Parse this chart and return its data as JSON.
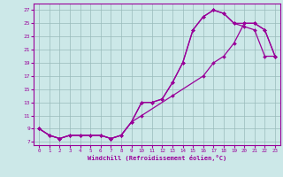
{
  "xlabel": "Windchill (Refroidissement éolien,°C)",
  "bg_color": "#cce8e8",
  "line_color": "#990099",
  "grid_color": "#99bbbb",
  "xlim": [
    -0.5,
    23.5
  ],
  "ylim": [
    6.5,
    28
  ],
  "xticks": [
    0,
    1,
    2,
    3,
    4,
    5,
    6,
    7,
    8,
    9,
    10,
    11,
    12,
    13,
    14,
    15,
    16,
    17,
    18,
    19,
    20,
    21,
    22,
    23
  ],
  "yticks": [
    7,
    9,
    11,
    13,
    15,
    17,
    19,
    21,
    23,
    25,
    27
  ],
  "curve1_x": [
    0,
    1,
    2,
    3,
    4,
    5,
    6,
    7,
    8,
    9,
    10,
    11,
    12,
    13,
    14,
    15,
    16,
    17,
    18,
    19,
    20,
    21,
    22,
    23
  ],
  "curve1_y": [
    9,
    8,
    7.5,
    8,
    8,
    8,
    8,
    7.5,
    8,
    10,
    13,
    13,
    13.5,
    16,
    19,
    24,
    26,
    27,
    26.5,
    25,
    24.5,
    24,
    20,
    20
  ],
  "curve2_x": [
    0,
    1,
    2,
    3,
    4,
    5,
    6,
    7,
    8,
    9,
    10,
    11,
    12,
    13,
    14,
    15,
    16,
    17,
    18,
    19,
    20,
    21,
    22,
    23
  ],
  "curve2_y": [
    9,
    8,
    7.5,
    8,
    8,
    8,
    8,
    7.5,
    8,
    10,
    13,
    13,
    13.5,
    16,
    19,
    24,
    26,
    27,
    26.5,
    25,
    25,
    25,
    24,
    20
  ],
  "curve3_x": [
    0,
    1,
    2,
    3,
    4,
    5,
    6,
    7,
    8,
    9,
    10,
    13,
    16,
    17,
    18,
    19,
    20,
    21,
    22,
    23
  ],
  "curve3_y": [
    9,
    8,
    7.5,
    8,
    8,
    8,
    8,
    7.5,
    8,
    10,
    11,
    14,
    17,
    19,
    20,
    22,
    25,
    25,
    24,
    20
  ]
}
